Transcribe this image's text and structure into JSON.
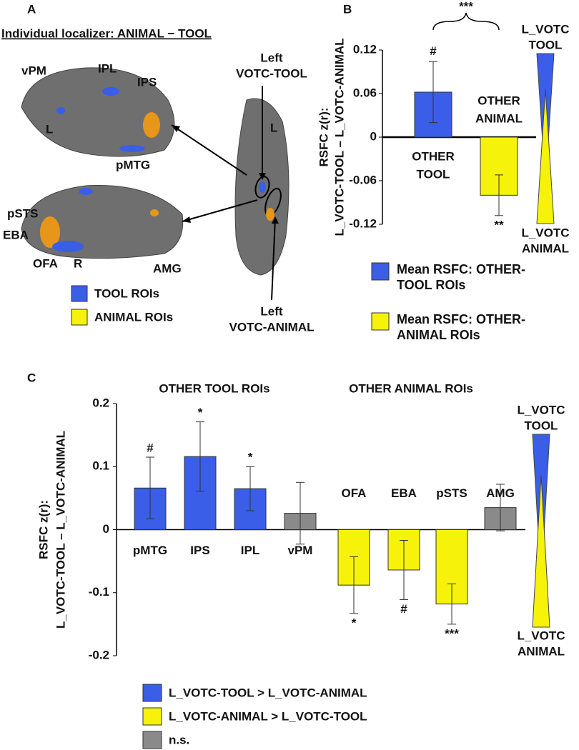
{
  "panel_a": {
    "letter": "A",
    "title": "Individual localizer: ANIMAL − TOOL",
    "labels": [
      "vPM",
      "IPL",
      "IPS",
      "L",
      "pMTG",
      "pSTS",
      "EBA",
      "OFA",
      "R",
      "AMG",
      "L"
    ],
    "callouts": [
      [
        "Left",
        "VOTC-TOOL"
      ],
      [
        "Left",
        "VOTC-ANIMAL"
      ]
    ],
    "legend": [
      {
        "name": "TOOL ROIs",
        "color": "#3a5ee8"
      },
      {
        "name": "ANIMAL ROIs",
        "color": "#f6f20a"
      }
    ]
  },
  "chart_data": [
    {
      "type": "bar",
      "panel": "B",
      "ylabel": [
        "RSFC z(r):",
        "L_VOTC-TOOL – L_VOTC-ANIMAL"
      ],
      "categories": [
        [
          "OTHER",
          "TOOL"
        ],
        [
          "OTHER",
          "ANIMAL"
        ]
      ],
      "series": [
        {
          "name": "Mean RSFC: OTHER-TOOL ROIs",
          "color": "#3a5ee8",
          "values": [
            0.062,
            null
          ],
          "errors": [
            0.042,
            null
          ],
          "annotations": [
            "#",
            null
          ]
        },
        {
          "name": "Mean RSFC: OTHER-ANIMAL ROIs",
          "color": "#f6f20a",
          "values": [
            null,
            -0.08
          ],
          "errors": [
            null,
            0.028
          ],
          "annotations": [
            null,
            "**"
          ]
        }
      ],
      "comparison": "***",
      "ylim": [
        -0.12,
        0.12
      ],
      "yticks": [
        0.12,
        0.06,
        0,
        -0.06,
        -0.12
      ],
      "scale_labels": [
        [
          "L_VOTC",
          "TOOL"
        ],
        [
          "L_VOTC",
          "ANIMAL"
        ]
      ]
    },
    {
      "type": "bar",
      "panel": "C",
      "ylabel": [
        "RSFC z(r):",
        "L_VOTC-TOOL – L_VOTC-ANIMAL"
      ],
      "groups": [
        "OTHER TOOL ROIs",
        "OTHER ANIMAL ROIs"
      ],
      "categories": [
        "pMTG",
        "IPS",
        "IPL",
        "vPM",
        "OFA",
        "EBA",
        "pSTS",
        "AMG"
      ],
      "values": [
        0.066,
        0.116,
        0.065,
        0.026,
        -0.088,
        -0.064,
        -0.118,
        0.035
      ],
      "errors": [
        0.049,
        0.055,
        0.035,
        0.049,
        0.045,
        0.047,
        0.032,
        0.037
      ],
      "annotations": [
        "#",
        "*",
        "*",
        null,
        "*",
        "#",
        "***",
        null
      ],
      "colors": [
        "#3a5ee8",
        "#3a5ee8",
        "#3a5ee8",
        "#8a8a8a",
        "#f6f20a",
        "#f6f20a",
        "#f6f20a",
        "#8a8a8a"
      ],
      "legend": [
        {
          "name": "L_VOTC-TOOL > L_VOTC-ANIMAL",
          "color": "#3a5ee8"
        },
        {
          "name": "L_VOTC-ANIMAL > L_VOTC-TOOL",
          "color": "#f6f20a"
        },
        {
          "name": "n.s.",
          "color": "#8a8a8a"
        }
      ],
      "ylim": [
        -0.2,
        0.2
      ],
      "yticks": [
        0.2,
        0.1,
        0,
        -0.1,
        -0.2
      ],
      "scale_labels": [
        [
          "L_VOTC",
          "TOOL"
        ],
        [
          "L_VOTC",
          "ANIMAL"
        ]
      ]
    }
  ]
}
